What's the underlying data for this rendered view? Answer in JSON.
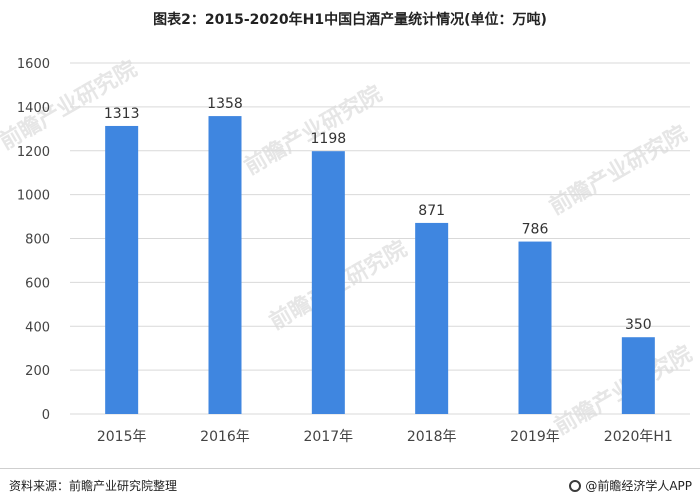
{
  "chart_data": {
    "type": "bar",
    "title": "图表2：2015-2020年H1中国白酒产量统计情况(单位：万吨)",
    "categories": [
      "2015年",
      "2016年",
      "2017年",
      "2018年",
      "2019年",
      "2020年H1"
    ],
    "values": [
      1313,
      1358,
      1198,
      871,
      786,
      350
    ],
    "ylim": [
      0,
      1600
    ],
    "yticks": [
      0,
      200,
      400,
      600,
      800,
      1000,
      1200,
      1400,
      1600
    ],
    "grid": true,
    "bar_color": "#3f86e0",
    "xlabel": "",
    "ylabel": ""
  },
  "watermark": "前瞻产业研究院",
  "footer": {
    "source": "资料来源：前瞻产业研究院整理",
    "brand": "@前瞻经济学人APP"
  }
}
